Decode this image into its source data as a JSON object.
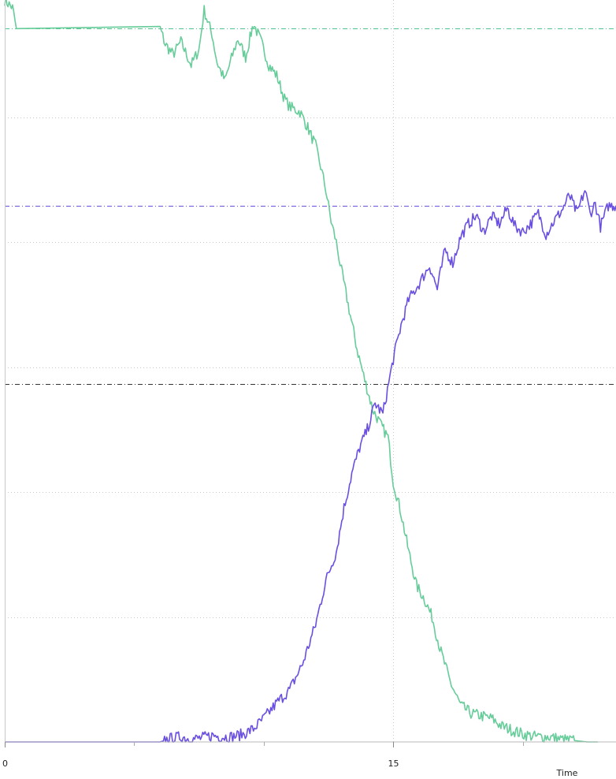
{
  "chart_data": {
    "type": "line",
    "title": "",
    "xlabel": "Time",
    "ylabel": "",
    "xlim": [
      0,
      23.6
    ],
    "ylim": [
      0,
      28.5
    ],
    "x_tick_labels": [
      {
        "x": 0,
        "label": "0"
      },
      {
        "x": 15,
        "label": "15"
      }
    ],
    "x_minor_ticks": [
      5,
      10,
      20
    ],
    "y_gridlines": [
      4.8,
      9.6,
      14.4,
      19.2,
      24.0
    ],
    "reference_lines": [
      {
        "y": 27.4,
        "color": "#4fc48d"
      },
      {
        "y": 20.6,
        "color": "#6a4fe0"
      },
      {
        "y": 13.75,
        "color": "#333333"
      }
    ],
    "colors": {
      "green": "#66cc99",
      "purple": "#6a4fe0"
    },
    "series": [
      {
        "color": "#66cc99",
        "x": [
          0,
          0.3,
          0.45,
          6.0,
          6.2,
          6.5,
          6.8,
          7.2,
          7.5,
          7.7,
          8.0,
          8.2,
          8.5,
          8.8,
          9.0,
          9.3,
          9.6,
          9.9,
          10.2,
          10.5,
          10.8,
          11.0,
          11.4,
          11.7,
          12.0,
          12.2,
          12.4,
          12.6,
          12.8,
          13.0,
          13.3,
          13.6,
          13.9,
          14.2,
          14.5,
          14.8,
          15.0,
          15.3,
          15.6,
          15.9,
          16.2,
          16.5,
          16.8,
          17.2,
          17.6,
          18.0,
          18.4,
          18.8,
          19.2,
          19.6,
          20.0,
          20.5,
          21.0,
          21.5,
          22.0,
          22.5,
          22.9
        ],
        "y": [
          28.5,
          28.2,
          27.4,
          27.4,
          26.8,
          26.4,
          26.9,
          26.0,
          26.6,
          28.1,
          27.2,
          26.1,
          25.4,
          26.4,
          27.0,
          26.3,
          27.6,
          26.9,
          26.0,
          25.6,
          24.7,
          24.4,
          24.2,
          23.6,
          22.9,
          22.1,
          21.2,
          20.0,
          19.2,
          18.1,
          16.6,
          15.1,
          13.9,
          12.8,
          12.2,
          11.7,
          10.0,
          8.8,
          7.3,
          6.0,
          5.5,
          4.8,
          3.6,
          2.3,
          1.4,
          1.1,
          1.0,
          0.9,
          0.6,
          0.45,
          0.3,
          0.2,
          0.2,
          0.1,
          0.05,
          0.0,
          0.0
        ]
      },
      {
        "color": "#6a4fe0",
        "x": [
          0,
          6.0,
          6.3,
          6.8,
          7.2,
          7.6,
          8.0,
          8.4,
          8.8,
          9.2,
          9.6,
          10.0,
          10.5,
          11.0,
          11.5,
          12.0,
          12.4,
          12.8,
          13.1,
          13.4,
          13.7,
          14.0,
          14.3,
          14.6,
          15.0,
          15.3,
          15.6,
          16.0,
          16.4,
          16.7,
          17.0,
          17.3,
          17.6,
          17.9,
          18.2,
          18.5,
          18.8,
          19.1,
          19.4,
          19.7,
          20.0,
          20.3,
          20.6,
          20.9,
          21.2,
          21.5,
          21.8,
          22.1,
          22.4,
          22.6,
          22.8,
          23.0,
          23.3,
          23.6
        ],
        "y": [
          0,
          0,
          0.1,
          0.2,
          0.1,
          0.15,
          0.25,
          0.2,
          0.2,
          0.3,
          0.5,
          0.9,
          1.5,
          2.0,
          3.0,
          4.5,
          6.2,
          7.3,
          9.0,
          10.3,
          11.3,
          12.0,
          13.0,
          12.6,
          14.7,
          16.0,
          17.0,
          17.6,
          18.3,
          17.4,
          18.9,
          18.4,
          19.4,
          19.9,
          20.2,
          19.6,
          20.2,
          19.9,
          20.5,
          19.8,
          19.6,
          19.9,
          20.3,
          19.5,
          20.0,
          20.4,
          21.0,
          20.3,
          21.2,
          20.3,
          20.7,
          19.8,
          20.6,
          20.6
        ]
      }
    ]
  }
}
